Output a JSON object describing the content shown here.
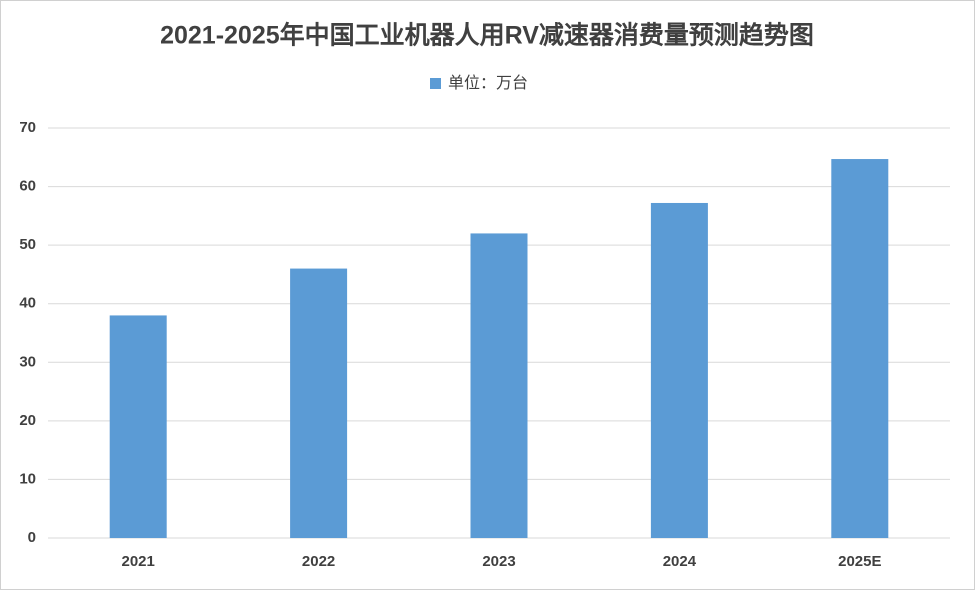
{
  "chart_data": {
    "type": "bar",
    "title": "2021-2025年中国工业机器人用RV减速器消费量预测趋势图",
    "legend": "单位：万台",
    "categories": [
      "2021",
      "2022",
      "2023",
      "2024",
      "2025E"
    ],
    "values": [
      38,
      46,
      52,
      57.2,
      64.7
    ],
    "color": "#5b9bd5",
    "ylim": [
      0,
      70
    ],
    "yticks": [
      0,
      10,
      20,
      30,
      40,
      50,
      60,
      70
    ],
    "grid": true
  }
}
